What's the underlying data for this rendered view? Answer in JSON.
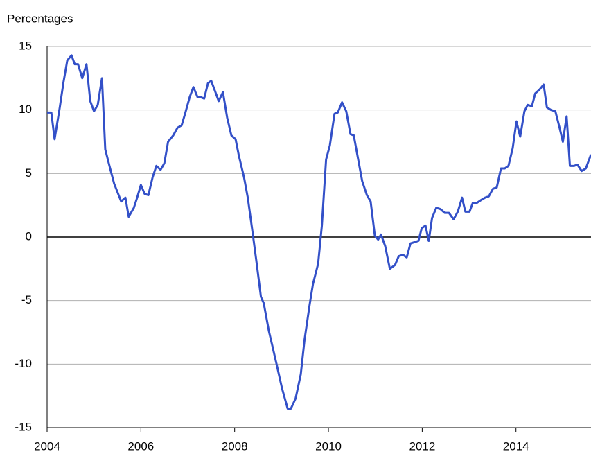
{
  "chart_data": {
    "type": "line",
    "title": "Percentages",
    "x": [
      2004.0,
      2004.09,
      2004.16,
      2004.27,
      2004.35,
      2004.43,
      2004.52,
      2004.59,
      2004.66,
      2004.75,
      2004.84,
      2004.92,
      2005.0,
      2005.08,
      2005.17,
      2005.24,
      2005.33,
      2005.43,
      2005.58,
      2005.67,
      2005.74,
      2005.85,
      2005.92,
      2006.0,
      2006.08,
      2006.16,
      2006.25,
      2006.33,
      2006.42,
      2006.5,
      2006.58,
      2006.69,
      2006.78,
      2006.87,
      2006.95,
      2007.04,
      2007.12,
      2007.21,
      2007.28,
      2007.35,
      2007.43,
      2007.5,
      2007.59,
      2007.66,
      2007.75,
      2007.84,
      2007.93,
      2008.02,
      2008.09,
      2008.2,
      2008.28,
      2008.37,
      2008.46,
      2008.56,
      2008.62,
      2008.73,
      2008.8,
      2008.9,
      2009.01,
      2009.13,
      2009.2,
      2009.3,
      2009.41,
      2009.49,
      2009.6,
      2009.67,
      2009.78,
      2009.86,
      2009.95,
      2010.03,
      2010.13,
      2010.2,
      2010.29,
      2010.38,
      2010.47,
      2010.54,
      2010.63,
      2010.72,
      2010.82,
      2010.9,
      2010.99,
      2011.06,
      2011.12,
      2011.21,
      2011.31,
      2011.42,
      2011.5,
      2011.59,
      2011.67,
      2011.75,
      2011.84,
      2011.92,
      2011.99,
      2012.07,
      2012.14,
      2012.21,
      2012.3,
      2012.39,
      2012.48,
      2012.57,
      2012.67,
      2012.76,
      2012.85,
      2012.92,
      2013.01,
      2013.08,
      2013.17,
      2013.25,
      2013.34,
      2013.42,
      2013.51,
      2013.59,
      2013.68,
      2013.76,
      2013.84,
      2013.93,
      2014.01,
      2014.09,
      2014.18,
      2014.25,
      2014.34,
      2014.41,
      2014.5,
      2014.59,
      2014.66,
      2014.75,
      2014.84,
      2014.93,
      2015.0,
      2015.08,
      2015.15,
      2015.24,
      2015.31,
      2015.4,
      2015.49,
      2015.6
    ],
    "series": [
      {
        "color": "#3350c8",
        "values": [
          9.8,
          9.8,
          7.7,
          10.2,
          12.2,
          13.9,
          14.3,
          13.6,
          13.6,
          12.5,
          13.6,
          10.7,
          9.9,
          10.4,
          12.5,
          6.9,
          5.6,
          4.2,
          2.8,
          3.1,
          1.6,
          2.3,
          3.1,
          4.1,
          3.4,
          3.3,
          4.7,
          5.6,
          5.3,
          5.8,
          7.5,
          8.0,
          8.6,
          8.8,
          9.8,
          11.0,
          11.8,
          11.0,
          11.0,
          10.9,
          12.1,
          12.3,
          11.4,
          10.7,
          11.4,
          9.4,
          8.0,
          7.7,
          6.4,
          4.7,
          3.1,
          0.7,
          -1.8,
          -4.7,
          -5.2,
          -7.4,
          -8.5,
          -10.1,
          -11.9,
          -13.5,
          -13.5,
          -12.7,
          -10.8,
          -8.1,
          -5.3,
          -3.7,
          -2.1,
          0.9,
          6.1,
          7.2,
          9.7,
          9.8,
          10.6,
          9.9,
          8.1,
          8.0,
          6.2,
          4.4,
          3.3,
          2.8,
          0.1,
          -0.2,
          0.2,
          -0.7,
          -2.5,
          -2.2,
          -1.5,
          -1.4,
          -1.6,
          -0.5,
          -0.4,
          -0.3,
          0.7,
          0.9,
          -0.3,
          1.5,
          2.3,
          2.2,
          1.9,
          1.9,
          1.4,
          2.0,
          3.1,
          2.0,
          2.0,
          2.7,
          2.7,
          2.9,
          3.1,
          3.2,
          3.8,
          3.9,
          5.4,
          5.4,
          5.6,
          7.0,
          9.1,
          7.9,
          9.9,
          10.4,
          10.3,
          11.3,
          11.6,
          12.0,
          10.2,
          10.0,
          9.9,
          8.6,
          7.5,
          9.5,
          5.6,
          5.6,
          5.7,
          5.2,
          5.4,
          6.5
        ]
      }
    ],
    "xlim": [
      2004,
      2015.6
    ],
    "xticks": [
      2004,
      2006,
      2008,
      2010,
      2012,
      2014
    ],
    "ylim": [
      -15,
      15
    ],
    "yticks": [
      -15,
      -10,
      -5,
      0,
      5,
      10,
      15
    ],
    "grid": true
  }
}
